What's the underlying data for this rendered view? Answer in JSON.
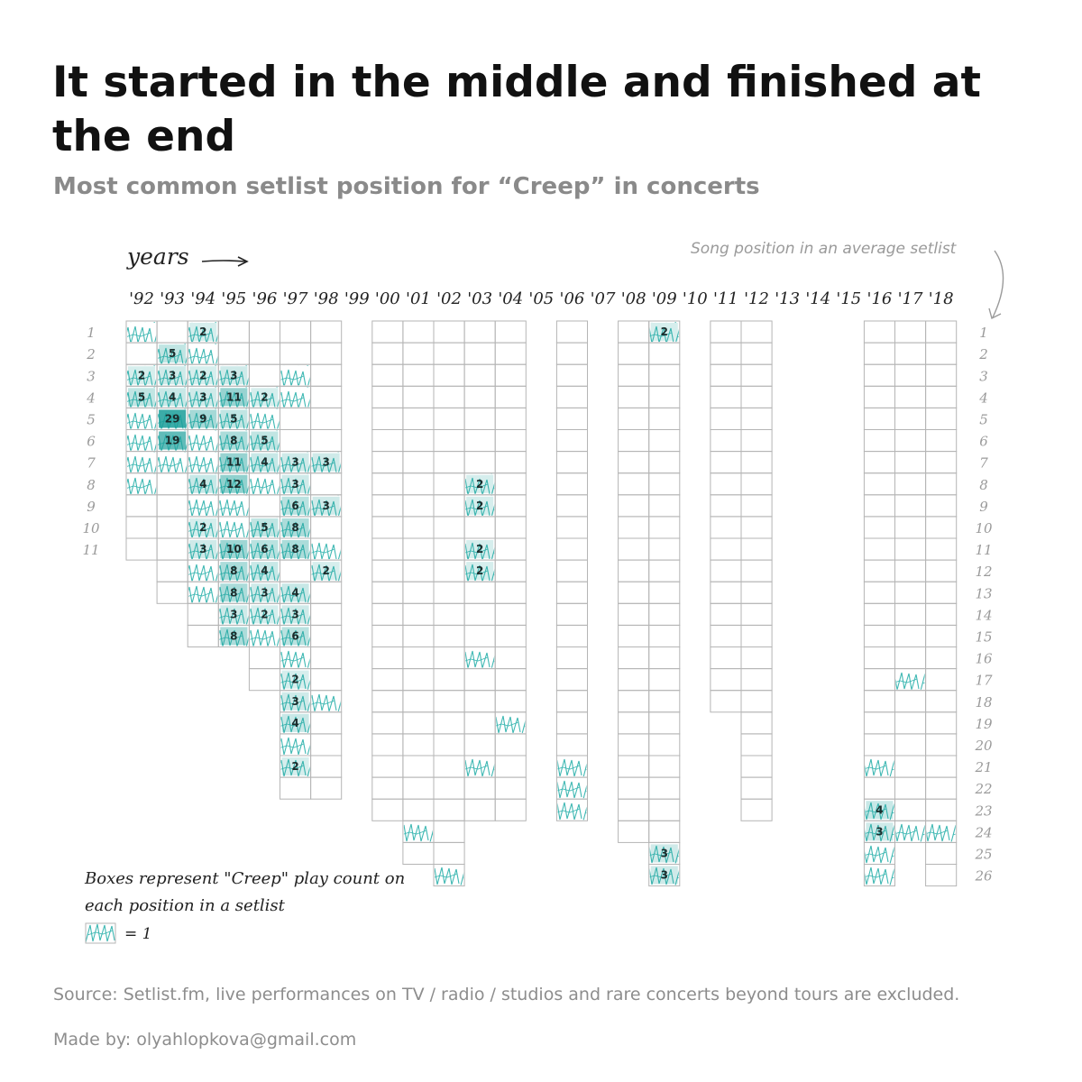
{
  "title": "It started in the middle and finished at the end",
  "subtitle": "Most common setlist position for “Creep” in concerts",
  "years_label": "years",
  "position_label": "Song position in an average setlist",
  "legend": {
    "text": "Boxes represent \"Creep\" play count on each position in a setlist",
    "equals": "= 1"
  },
  "source": "Source: Setlist.fm, live performances on TV / radio / studios and rare concerts beyond tours are excluded.",
  "credit": "Made by: olyahlopkova@gmail.com",
  "colors": {
    "accent": "#3fb8b3",
    "dark": "#1a9e99",
    "grid": "#b5b5b5",
    "axis_text": "#9a9a9a"
  },
  "chart_data": {
    "type": "heatmap",
    "x_label": "years",
    "y_label": "Song position in an average setlist",
    "years": [
      "'92",
      "'93",
      "'94",
      "'95",
      "'96",
      "'97",
      "'98",
      "'99",
      "'00",
      "'01",
      "'02",
      "'03",
      "'04",
      "'05",
      "'06",
      "'07",
      "'08",
      "'09",
      "'10",
      "'11",
      "'12",
      "'13",
      "'14",
      "'15",
      "'16",
      "'17",
      "'18"
    ],
    "positions": [
      1,
      2,
      3,
      4,
      5,
      6,
      7,
      8,
      9,
      10,
      11,
      12,
      13,
      14,
      15,
      16,
      17,
      18,
      19,
      20,
      21,
      22,
      23,
      24,
      25,
      26
    ],
    "setlist_length": {
      "'92": 11,
      "'93": 13,
      "'94": 15,
      "'95": 15,
      "'96": 17,
      "'97": 22,
      "'98": 22,
      "'00": 23,
      "'01": 25,
      "'02": 26,
      "'03": 23,
      "'04": 23,
      "'06": 23,
      "'08": 24,
      "'09": 26,
      "'11": 18,
      "'12": 23,
      "'16": 26,
      "'17": 24,
      "'18": 26
    },
    "plays": [
      {
        "year": "'92",
        "pos": 1,
        "count": 1
      },
      {
        "year": "'92",
        "pos": 3,
        "count": 2
      },
      {
        "year": "'92",
        "pos": 4,
        "count": 5
      },
      {
        "year": "'92",
        "pos": 5,
        "count": 1
      },
      {
        "year": "'92",
        "pos": 6,
        "count": 1
      },
      {
        "year": "'92",
        "pos": 7,
        "count": 1
      },
      {
        "year": "'92",
        "pos": 8,
        "count": 1
      },
      {
        "year": "'93",
        "pos": 2,
        "count": 5
      },
      {
        "year": "'93",
        "pos": 3,
        "count": 3
      },
      {
        "year": "'93",
        "pos": 4,
        "count": 4
      },
      {
        "year": "'93",
        "pos": 5,
        "count": 29
      },
      {
        "year": "'93",
        "pos": 6,
        "count": 19
      },
      {
        "year": "'93",
        "pos": 7,
        "count": 1
      },
      {
        "year": "'94",
        "pos": 1,
        "count": 2
      },
      {
        "year": "'94",
        "pos": 2,
        "count": 1
      },
      {
        "year": "'94",
        "pos": 3,
        "count": 2
      },
      {
        "year": "'94",
        "pos": 4,
        "count": 3
      },
      {
        "year": "'94",
        "pos": 5,
        "count": 9
      },
      {
        "year": "'94",
        "pos": 6,
        "count": 1
      },
      {
        "year": "'94",
        "pos": 7,
        "count": 1
      },
      {
        "year": "'94",
        "pos": 8,
        "count": 4
      },
      {
        "year": "'94",
        "pos": 9,
        "count": 1
      },
      {
        "year": "'94",
        "pos": 10,
        "count": 2
      },
      {
        "year": "'94",
        "pos": 11,
        "count": 3
      },
      {
        "year": "'94",
        "pos": 12,
        "count": 1
      },
      {
        "year": "'94",
        "pos": 13,
        "count": 1
      },
      {
        "year": "'95",
        "pos": 3,
        "count": 3
      },
      {
        "year": "'95",
        "pos": 4,
        "count": 11
      },
      {
        "year": "'95",
        "pos": 5,
        "count": 5
      },
      {
        "year": "'95",
        "pos": 6,
        "count": 8
      },
      {
        "year": "'95",
        "pos": 7,
        "count": 11
      },
      {
        "year": "'95",
        "pos": 8,
        "count": 12
      },
      {
        "year": "'95",
        "pos": 9,
        "count": 1
      },
      {
        "year": "'95",
        "pos": 10,
        "count": 1
      },
      {
        "year": "'95",
        "pos": 11,
        "count": 10
      },
      {
        "year": "'95",
        "pos": 12,
        "count": 8
      },
      {
        "year": "'95",
        "pos": 13,
        "count": 8
      },
      {
        "year": "'95",
        "pos": 14,
        "count": 3
      },
      {
        "year": "'95",
        "pos": 15,
        "count": 8
      },
      {
        "year": "'96",
        "pos": 4,
        "count": 2
      },
      {
        "year": "'96",
        "pos": 5,
        "count": 1
      },
      {
        "year": "'96",
        "pos": 6,
        "count": 5
      },
      {
        "year": "'96",
        "pos": 7,
        "count": 4
      },
      {
        "year": "'96",
        "pos": 8,
        "count": 1
      },
      {
        "year": "'96",
        "pos": 10,
        "count": 5
      },
      {
        "year": "'96",
        "pos": 11,
        "count": 6
      },
      {
        "year": "'96",
        "pos": 12,
        "count": 4
      },
      {
        "year": "'96",
        "pos": 13,
        "count": 3
      },
      {
        "year": "'96",
        "pos": 14,
        "count": 2
      },
      {
        "year": "'96",
        "pos": 15,
        "count": 1
      },
      {
        "year": "'97",
        "pos": 3,
        "count": 1
      },
      {
        "year": "'97",
        "pos": 4,
        "count": 1
      },
      {
        "year": "'97",
        "pos": 7,
        "count": 3
      },
      {
        "year": "'97",
        "pos": 8,
        "count": 3
      },
      {
        "year": "'97",
        "pos": 9,
        "count": 6
      },
      {
        "year": "'97",
        "pos": 10,
        "count": 8
      },
      {
        "year": "'97",
        "pos": 11,
        "count": 8
      },
      {
        "year": "'97",
        "pos": 13,
        "count": 4
      },
      {
        "year": "'97",
        "pos": 14,
        "count": 3
      },
      {
        "year": "'97",
        "pos": 15,
        "count": 6
      },
      {
        "year": "'97",
        "pos": 16,
        "count": 1
      },
      {
        "year": "'97",
        "pos": 17,
        "count": 2
      },
      {
        "year": "'97",
        "pos": 18,
        "count": 3
      },
      {
        "year": "'97",
        "pos": 19,
        "count": 4
      },
      {
        "year": "'97",
        "pos": 20,
        "count": 1
      },
      {
        "year": "'97",
        "pos": 21,
        "count": 2
      },
      {
        "year": "'98",
        "pos": 7,
        "count": 3
      },
      {
        "year": "'98",
        "pos": 9,
        "count": 3
      },
      {
        "year": "'98",
        "pos": 11,
        "count": 1
      },
      {
        "year": "'98",
        "pos": 12,
        "count": 2
      },
      {
        "year": "'98",
        "pos": 18,
        "count": 1
      },
      {
        "year": "'01",
        "pos": 24,
        "count": 1
      },
      {
        "year": "'02",
        "pos": 26,
        "count": 1
      },
      {
        "year": "'03",
        "pos": 8,
        "count": 2
      },
      {
        "year": "'03",
        "pos": 9,
        "count": 2
      },
      {
        "year": "'03",
        "pos": 11,
        "count": 2
      },
      {
        "year": "'03",
        "pos": 12,
        "count": 2
      },
      {
        "year": "'03",
        "pos": 16,
        "count": 1
      },
      {
        "year": "'03",
        "pos": 21,
        "count": 1
      },
      {
        "year": "'04",
        "pos": 19,
        "count": 1
      },
      {
        "year": "'06",
        "pos": 21,
        "count": 1
      },
      {
        "year": "'06",
        "pos": 22,
        "count": 1
      },
      {
        "year": "'06",
        "pos": 23,
        "count": 1
      },
      {
        "year": "'09",
        "pos": 1,
        "count": 2
      },
      {
        "year": "'09",
        "pos": 25,
        "count": 3
      },
      {
        "year": "'09",
        "pos": 26,
        "count": 3
      },
      {
        "year": "'16",
        "pos": 21,
        "count": 1
      },
      {
        "year": "'16",
        "pos": 23,
        "count": 4
      },
      {
        "year": "'16",
        "pos": 24,
        "count": 3
      },
      {
        "year": "'16",
        "pos": 25,
        "count": 1
      },
      {
        "year": "'16",
        "pos": 26,
        "count": 1
      },
      {
        "year": "'17",
        "pos": 17,
        "count": 1
      },
      {
        "year": "'17",
        "pos": 24,
        "count": 1
      },
      {
        "year": "'18",
        "pos": 24,
        "count": 1
      }
    ]
  }
}
